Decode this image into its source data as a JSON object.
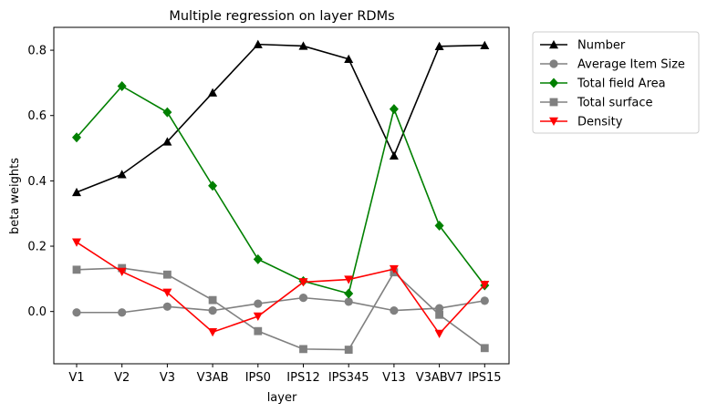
{
  "chart_data": {
    "type": "line",
    "title": "Multiple regression on layer RDMs",
    "xlabel": "layer",
    "ylabel": "beta weights",
    "categories": [
      "V1",
      "V2",
      "V3",
      "V3AB",
      "IPS0",
      "IPS12",
      "IPS345",
      "V13",
      "V3ABV7",
      "IPS15"
    ],
    "ylim": [
      -0.16,
      0.87
    ],
    "yticks": [
      0.0,
      0.2,
      0.4,
      0.6,
      0.8
    ],
    "ytick_labels": [
      "0.0",
      "0.2",
      "0.4",
      "0.6",
      "0.8"
    ],
    "grid": false,
    "legend_position": "outside-top-right",
    "series": [
      {
        "name": "Number",
        "color": "#000000",
        "marker": "triangle-up",
        "values": [
          0.365,
          0.42,
          0.52,
          0.67,
          0.818,
          0.813,
          0.773,
          0.477,
          0.812,
          0.815
        ]
      },
      {
        "name": "Average Item Size",
        "color": "#808080",
        "marker": "circle",
        "values": [
          -0.003,
          -0.003,
          0.015,
          0.003,
          0.024,
          0.042,
          0.03,
          0.003,
          0.01,
          0.033
        ]
      },
      {
        "name": "Total field Area",
        "color": "#008000",
        "marker": "diamond",
        "values": [
          0.533,
          0.69,
          0.61,
          0.385,
          0.16,
          0.093,
          0.055,
          0.62,
          0.263,
          0.08
        ]
      },
      {
        "name": "Total surface",
        "color": "#808080",
        "marker": "square",
        "values": [
          0.128,
          0.133,
          0.113,
          0.035,
          -0.06,
          -0.115,
          -0.117,
          0.12,
          -0.01,
          -0.112
        ]
      },
      {
        "name": "Density",
        "color": "#ff0000",
        "marker": "triangle-down",
        "values": [
          0.212,
          0.122,
          0.058,
          -0.063,
          -0.015,
          0.09,
          0.098,
          0.13,
          -0.068,
          0.082
        ]
      }
    ]
  }
}
